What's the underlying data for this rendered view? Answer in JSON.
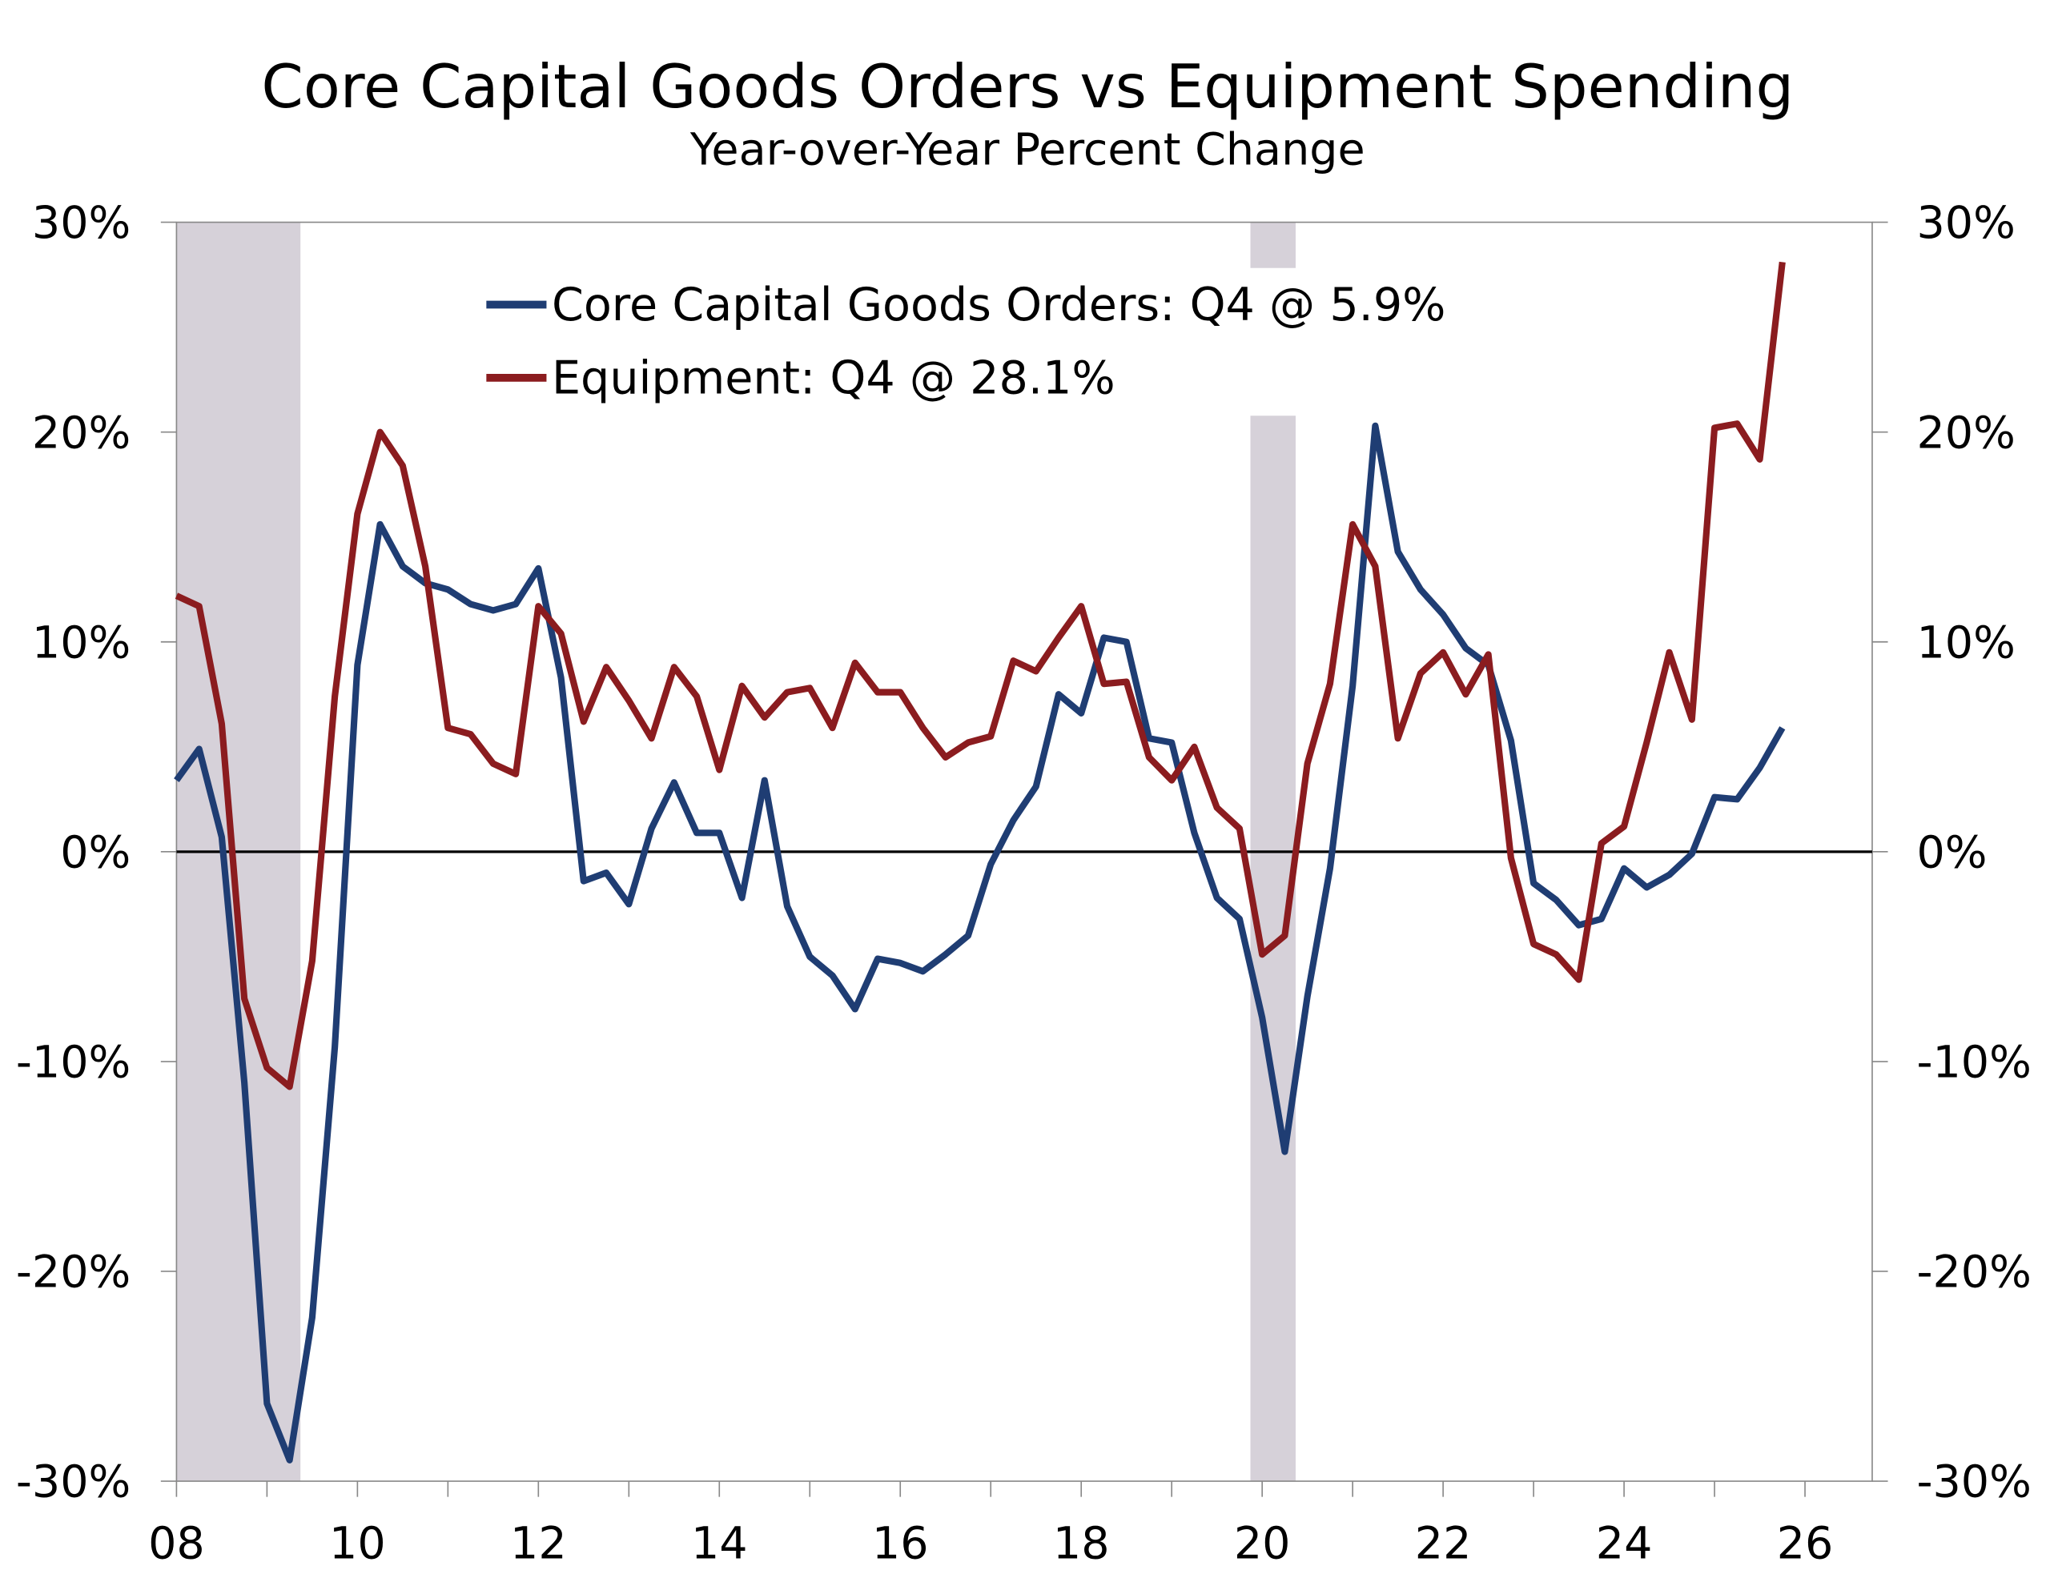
{
  "chart_data": {
    "type": "line",
    "title": "Core Capital Goods Orders vs Equipment Spending",
    "subtitle": "Year-over-Year Percent Change",
    "xlabel": "",
    "ylabel": "",
    "ylim": [
      -30,
      30
    ],
    "xlim": [
      2008,
      2026.75
    ],
    "grid": false,
    "legend_position": "top-center",
    "y_ticks": [
      30,
      20,
      10,
      0,
      -10,
      -20,
      -30
    ],
    "y_tick_labels": [
      "30%",
      "20%",
      "10%",
      "0%",
      "-10%",
      "-20%",
      "-30%"
    ],
    "x_ticks": [
      2008,
      2010,
      2012,
      2014,
      2016,
      2018,
      2020,
      2022,
      2024,
      2026
    ],
    "x_tick_labels": [
      "08",
      "10",
      "12",
      "14",
      "16",
      "18",
      "20",
      "22",
      "24",
      "26"
    ],
    "x_start": 2008.0,
    "x_step": 0.25,
    "recessions": [
      [
        2008.0,
        2009.37
      ],
      [
        2019.87,
        2020.37
      ]
    ],
    "recession_color": "#d6d1d9",
    "series": [
      {
        "name": "Core Capital Goods Orders: Q4 @ 5.9%",
        "color": "#1f3d73",
        "values": [
          3.4,
          4.9,
          0.7,
          -11.0,
          -26.3,
          -29.0,
          -22.2,
          -9.3,
          8.9,
          15.6,
          13.6,
          12.8,
          12.5,
          11.8,
          11.5,
          11.8,
          13.5,
          8.3,
          -1.4,
          -1.0,
          -2.5,
          1.1,
          3.3,
          0.9,
          0.9,
          -2.2,
          3.4,
          -2.6,
          -5.0,
          -5.9,
          -7.5,
          -5.1,
          -5.3,
          -5.7,
          -4.9,
          -4.0,
          -0.6,
          1.5,
          3.1,
          7.5,
          6.6,
          10.2,
          10.0,
          5.4,
          5.2,
          0.9,
          -2.2,
          -3.2,
          -7.9,
          -14.3,
          -6.9,
          -0.8,
          7.9,
          20.3,
          14.3,
          12.5,
          11.3,
          9.7,
          8.9,
          5.3,
          -1.5,
          -2.3,
          -3.5,
          -3.2,
          -0.8,
          -1.7,
          -1.1,
          -0.1,
          2.6,
          2.5,
          4.0,
          5.9
        ]
      },
      {
        "name": "Equipment: Q4 @ 28.1%",
        "color": "#8b1c1f",
        "values": [
          12.2,
          11.7,
          6.1,
          -7.0,
          -10.3,
          -11.2,
          -5.2,
          7.4,
          16.1,
          20.0,
          18.4,
          13.6,
          5.9,
          5.6,
          4.2,
          3.7,
          11.7,
          10.4,
          6.2,
          8.8,
          7.2,
          5.4,
          8.8,
          7.4,
          3.9,
          7.9,
          6.4,
          7.6,
          7.8,
          5.9,
          9.0,
          7.6,
          7.6,
          5.9,
          4.5,
          5.2,
          5.5,
          9.1,
          8.6,
          10.2,
          11.7,
          8.0,
          8.1,
          4.5,
          3.4,
          5.0,
          2.1,
          1.1,
          -4.9,
          -4.0,
          4.2,
          8.0,
          15.6,
          13.6,
          5.4,
          8.5,
          9.5,
          7.5,
          9.4,
          -0.3,
          -4.4,
          -4.9,
          -6.1,
          0.4,
          1.2,
          5.2,
          9.5,
          6.3,
          20.2,
          20.4,
          18.7,
          28.1
        ]
      }
    ]
  }
}
